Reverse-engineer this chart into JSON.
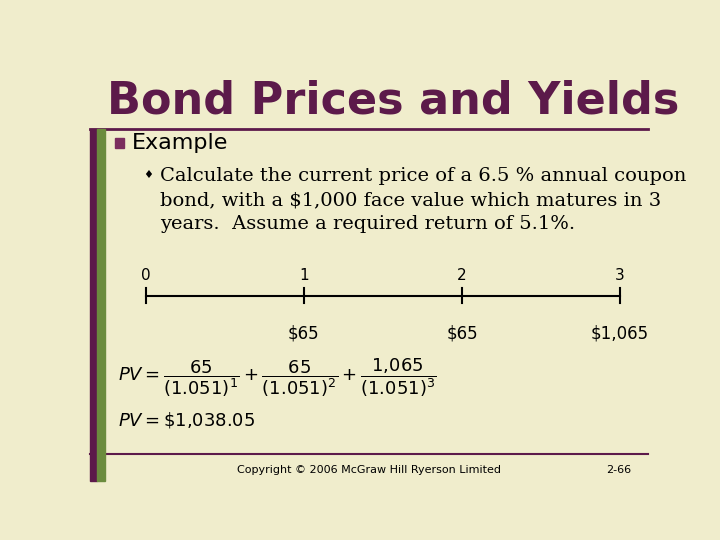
{
  "bg_color": "#f0edcc",
  "title": "Bond Prices and Yields",
  "title_color": "#5c1a4a",
  "title_fontsize": 32,
  "title_bold": true,
  "rule_color": "#5c1a4a",
  "bullet_color": "#7b2d5e",
  "example_text": "Example",
  "example_fontsize": 16,
  "sub_bullet_text": "Calculate the current price of a 6.5 % annual coupon\nbond, with a $1,000 face value which matures in 3\nyears.  Assume a required return of 5.1%.",
  "sub_fontsize": 14,
  "timeline_labels": [
    "0",
    "1",
    "2",
    "3"
  ],
  "cashflow_labels": [
    "$65",
    "$65",
    "$1,065"
  ],
  "formula_line1": "$PV = \\dfrac{65}{(1.051)^1} + \\dfrac{65}{(1.051)^2} + \\dfrac{1{,}065}{(1.051)^3}$",
  "formula_line2": "$PV = \\$1{,}038.05$",
  "footer_text": "Copyright © 2006 McGraw Hill Ryerson Limited",
  "footer_page": "2-66",
  "left_bar_color": "#6b8c3e",
  "left_bar2_color": "#5c1a4a"
}
